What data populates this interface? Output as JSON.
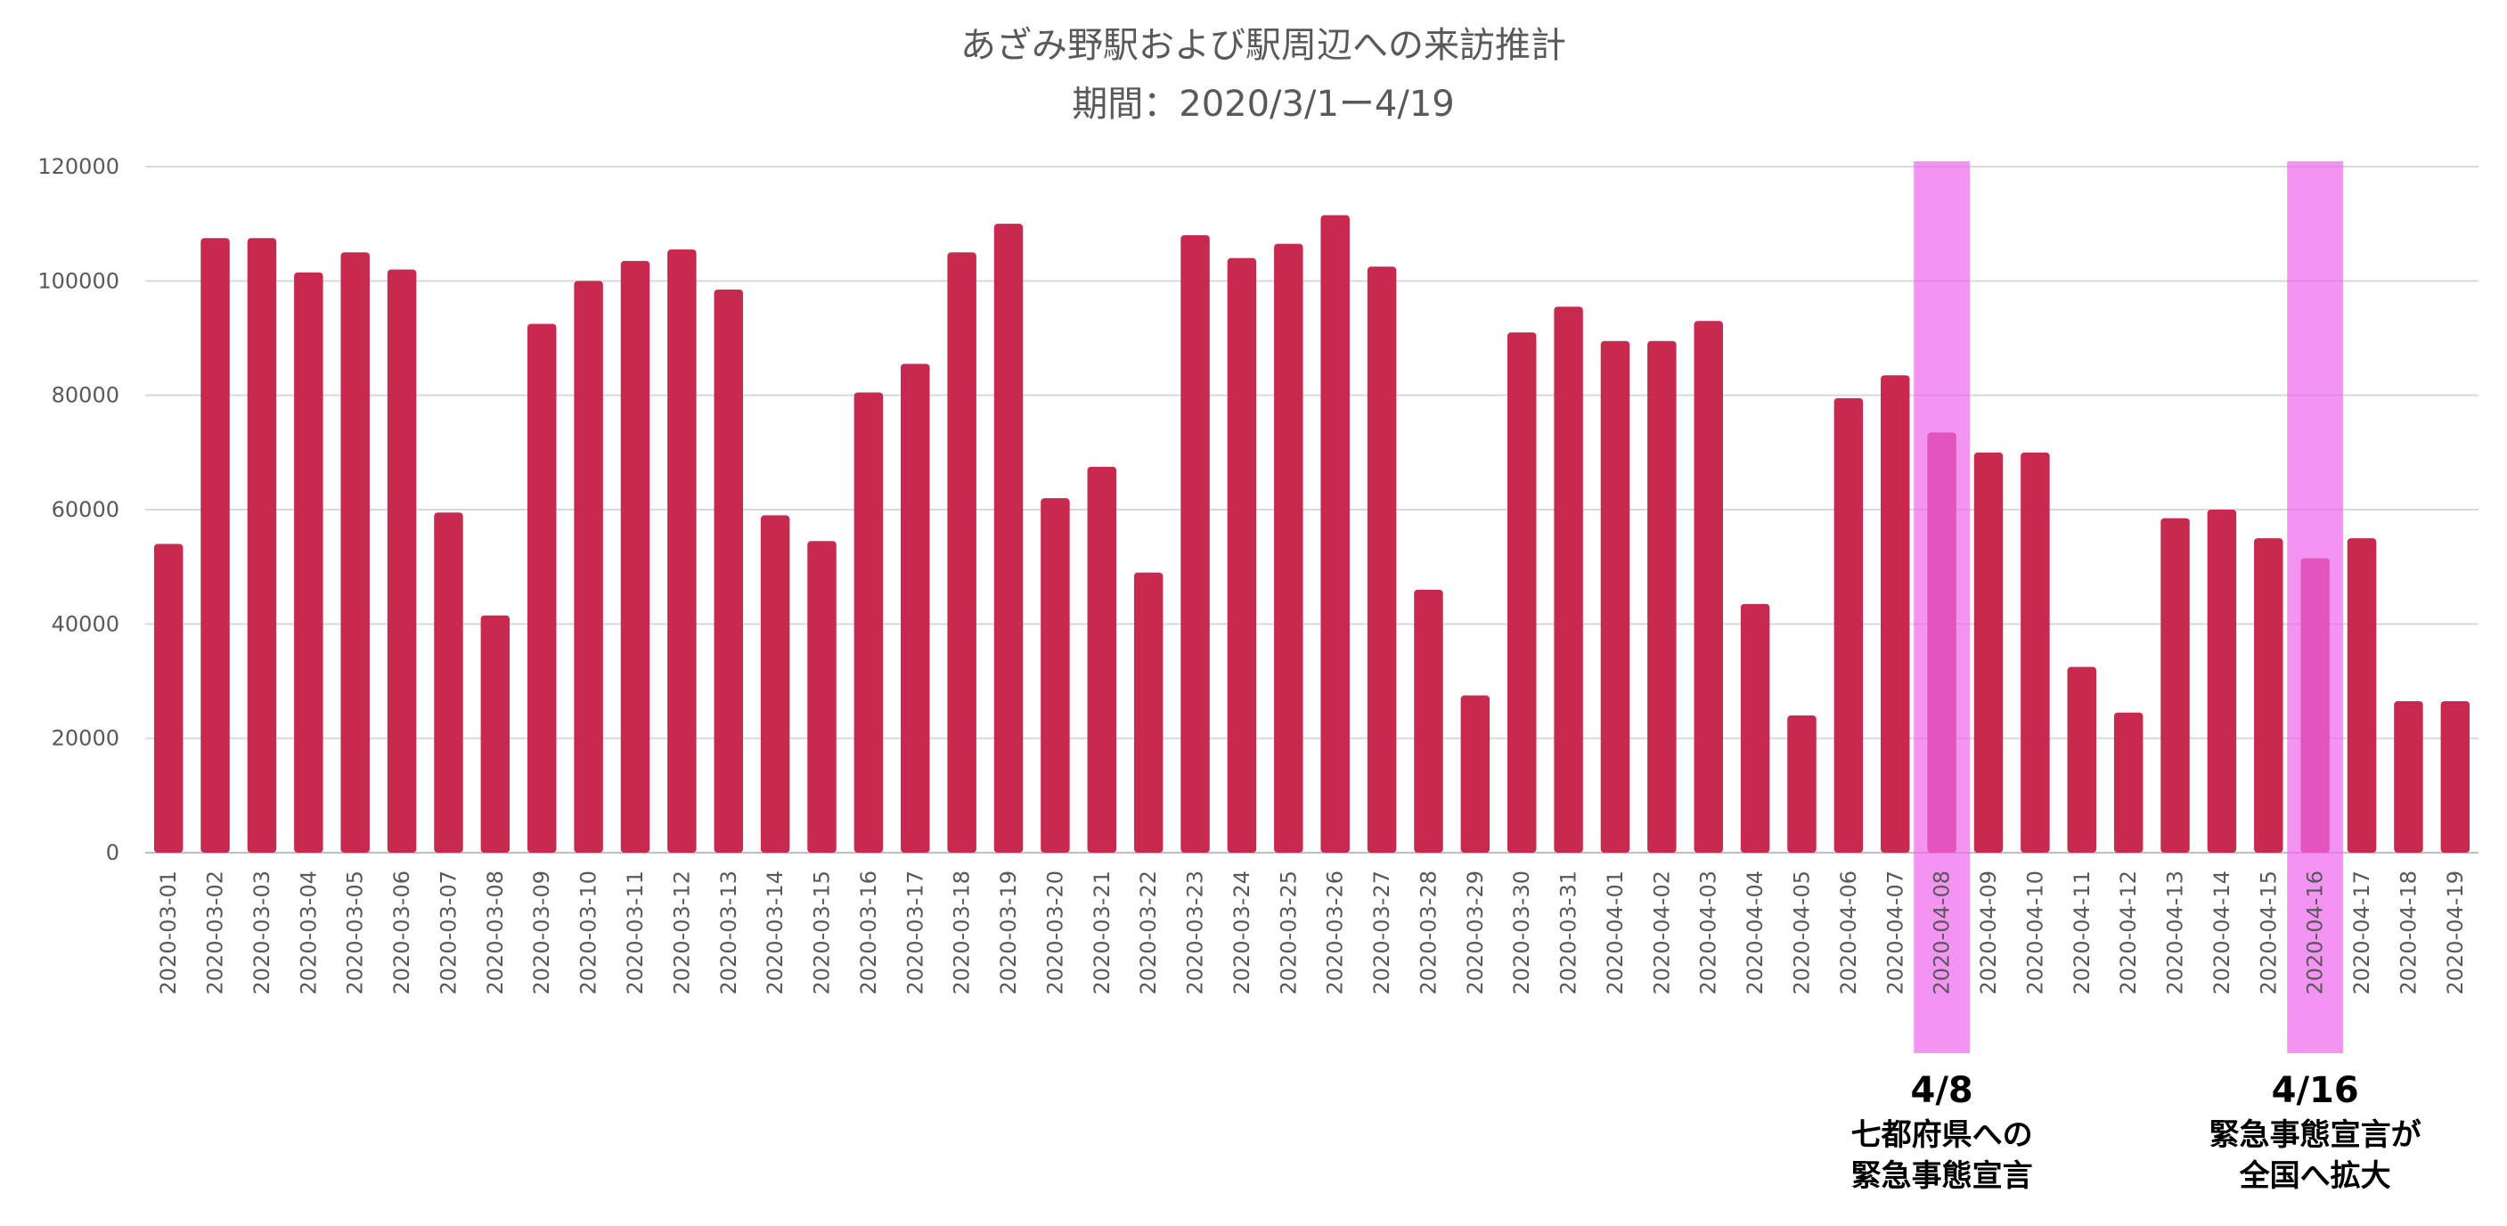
{
  "chart_data": {
    "type": "bar",
    "title": "あざみ野駅および駅周辺への来訪推計",
    "subtitle": "期間：2020/3/1ー4/19",
    "xlabel": "",
    "ylabel": "",
    "ylim": [
      0,
      120000
    ],
    "yticks": [
      "0",
      "20000",
      "40000",
      "60000",
      "80000",
      "100000",
      "120000"
    ],
    "grid": true,
    "legend": "none",
    "bar_color": "#C8294E",
    "highlight_color": "#EE66EE",
    "categories": [
      "2020-03-01",
      "2020-03-02",
      "2020-03-03",
      "2020-03-04",
      "2020-03-05",
      "2020-03-06",
      "2020-03-07",
      "2020-03-08",
      "2020-03-09",
      "2020-03-10",
      "2020-03-11",
      "2020-03-12",
      "2020-03-13",
      "2020-03-14",
      "2020-03-15",
      "2020-03-16",
      "2020-03-17",
      "2020-03-18",
      "2020-03-19",
      "2020-03-20",
      "2020-03-21",
      "2020-03-22",
      "2020-03-23",
      "2020-03-24",
      "2020-03-25",
      "2020-03-26",
      "2020-03-27",
      "2020-03-28",
      "2020-03-29",
      "2020-03-30",
      "2020-03-31",
      "2020-04-01",
      "2020-04-02",
      "2020-04-03",
      "2020-04-04",
      "2020-04-05",
      "2020-04-06",
      "2020-04-07",
      "2020-04-08",
      "2020-04-09",
      "2020-04-10",
      "2020-04-11",
      "2020-04-12",
      "2020-04-13",
      "2020-04-14",
      "2020-04-15",
      "2020-04-16",
      "2020-04-17",
      "2020-04-18",
      "2020-04-19"
    ],
    "values": [
      54000,
      107500,
      107500,
      101500,
      105000,
      102000,
      59500,
      41500,
      92500,
      100000,
      103500,
      105500,
      98500,
      59000,
      54500,
      80500,
      85500,
      105000,
      110000,
      62000,
      67500,
      49000,
      108000,
      104000,
      106500,
      111500,
      102500,
      46000,
      27500,
      91000,
      95500,
      89500,
      89500,
      93000,
      43500,
      24000,
      79500,
      83500,
      73500,
      70000,
      70000,
      32500,
      24500,
      58500,
      60000,
      55000,
      51500,
      55000,
      26500,
      26500
    ],
    "annotations": [
      {
        "category": "2020-04-08",
        "date_label": "4/8",
        "lines": [
          "七都府県への",
          "緊急事態宣言"
        ]
      },
      {
        "category": "2020-04-16",
        "date_label": "4/16",
        "lines": [
          "緊急事態宣言が",
          "全国へ拡大"
        ]
      }
    ]
  }
}
